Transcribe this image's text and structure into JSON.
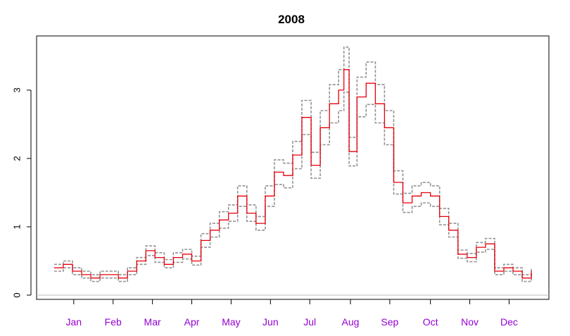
{
  "chart_data": {
    "type": "line",
    "title": "2008",
    "xlabel": "",
    "ylabel": "",
    "xlim": [
      0,
      366
    ],
    "ylim": [
      0,
      3.7
    ],
    "yticks": [
      0,
      1,
      2,
      3
    ],
    "ytick_labels": [
      "0",
      "1",
      "2",
      "3"
    ],
    "month_labels": [
      "Jan",
      "Feb",
      "Mar",
      "Apr",
      "May",
      "Jun",
      "Jul",
      "Aug",
      "Sep",
      "Oct",
      "Nov",
      "Dec"
    ],
    "month_tick_days": [
      16,
      46,
      76,
      106,
      136,
      166,
      196,
      227,
      257,
      288,
      318,
      348
    ],
    "baseline": 0,
    "colors": {
      "line": "#e8000b",
      "band": "#808080",
      "baseline": "#bebebe",
      "month_label": "#9400d3"
    },
    "x": [
      1,
      8,
      15,
      22,
      29,
      36,
      43,
      50,
      57,
      64,
      71,
      78,
      85,
      92,
      99,
      106,
      113,
      120,
      127,
      134,
      141,
      148,
      155,
      162,
      169,
      176,
      183,
      190,
      197,
      204,
      211,
      218,
      222,
      226,
      232,
      239,
      246,
      253,
      260,
      267,
      274,
      281,
      288,
      295,
      302,
      309,
      316,
      323,
      330,
      337,
      344,
      351,
      358,
      365
    ],
    "series": [
      {
        "name": "estimate",
        "values": [
          0.4,
          0.45,
          0.35,
          0.3,
          0.25,
          0.3,
          0.3,
          0.25,
          0.35,
          0.5,
          0.65,
          0.55,
          0.45,
          0.55,
          0.6,
          0.5,
          0.8,
          0.95,
          1.1,
          1.2,
          1.45,
          1.2,
          1.05,
          1.45,
          1.8,
          1.75,
          2.05,
          2.6,
          1.9,
          2.45,
          2.8,
          3.0,
          3.3,
          2.1,
          2.9,
          3.1,
          2.8,
          2.45,
          1.65,
          1.35,
          1.45,
          1.5,
          1.45,
          1.15,
          0.95,
          0.6,
          0.55,
          0.7,
          0.75,
          0.35,
          0.4,
          0.35,
          0.25,
          0.35
        ]
      },
      {
        "name": "upper",
        "values": [
          0.45,
          0.5,
          0.4,
          0.35,
          0.3,
          0.35,
          0.35,
          0.3,
          0.4,
          0.55,
          0.72,
          0.62,
          0.52,
          0.62,
          0.67,
          0.57,
          0.9,
          1.05,
          1.22,
          1.32,
          1.6,
          1.32,
          1.15,
          1.6,
          1.98,
          1.93,
          2.25,
          2.85,
          2.09,
          2.7,
          3.08,
          3.3,
          3.63,
          2.31,
          3.19,
          3.41,
          3.08,
          2.7,
          1.82,
          1.49,
          1.6,
          1.65,
          1.6,
          1.27,
          1.05,
          0.66,
          0.61,
          0.77,
          0.83,
          0.4,
          0.45,
          0.4,
          0.3,
          0.4
        ]
      },
      {
        "name": "lower",
        "values": [
          0.35,
          0.4,
          0.3,
          0.25,
          0.2,
          0.25,
          0.25,
          0.2,
          0.3,
          0.45,
          0.58,
          0.48,
          0.4,
          0.48,
          0.53,
          0.44,
          0.7,
          0.85,
          0.98,
          1.08,
          1.3,
          1.08,
          0.95,
          1.3,
          1.62,
          1.57,
          1.85,
          2.35,
          1.71,
          2.2,
          2.52,
          2.7,
          2.97,
          1.89,
          2.61,
          2.79,
          2.52,
          2.2,
          1.48,
          1.21,
          1.3,
          1.35,
          1.3,
          1.03,
          0.85,
          0.54,
          0.49,
          0.63,
          0.67,
          0.3,
          0.35,
          0.3,
          0.2,
          0.3
        ]
      }
    ]
  }
}
